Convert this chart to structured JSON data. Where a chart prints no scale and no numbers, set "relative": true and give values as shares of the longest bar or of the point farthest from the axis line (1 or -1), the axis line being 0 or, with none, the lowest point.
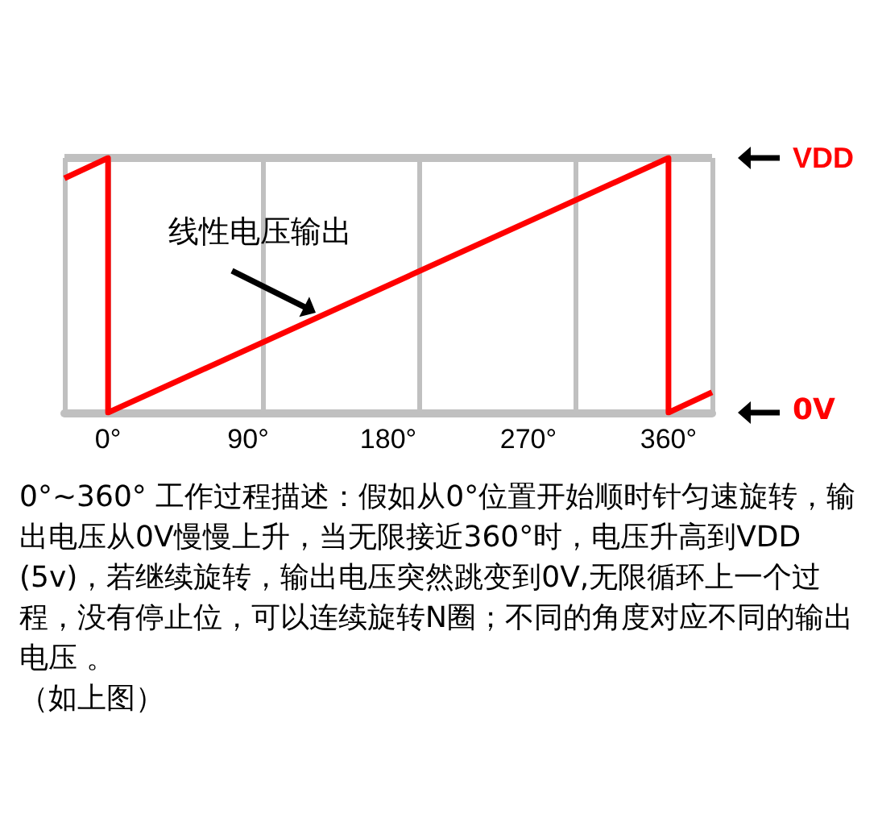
{
  "chart_data": {
    "type": "line",
    "x": [
      -28,
      0,
      0,
      360,
      360,
      388
    ],
    "series": [
      {
        "color": "#ff0000",
        "values": [
          0.92,
          1,
          0,
          1,
          0,
          0.08
        ]
      }
    ],
    "relative": true,
    "xlim": [
      -28,
      388
    ],
    "xticks": [
      {
        "value": 0,
        "label": "0°"
      },
      {
        "value": 90,
        "label": "90°"
      },
      {
        "value": 180,
        "label": "180°"
      },
      {
        "value": 270,
        "label": "270°"
      },
      {
        "value": 360,
        "label": "360°"
      }
    ],
    "ref_lines": [
      {
        "axis": "y",
        "value": 1,
        "label": "VDD",
        "color": "#c0c0c0"
      }
    ],
    "grid": "x",
    "annotations": [
      {
        "text": "线性电压输出",
        "x": 137,
        "y": 0.38
      },
      "0V",
      "0°~360° 工作过程描述：假如从0°位置开始顺时针匀速旋转，输出电压从0V慢慢上升，当无限接近360°时，电压升高到VDD (5v)，若继续旋转，输出电压突然跳变到0V,无限循环上一个过程，没有停止位，可以连续旋转N圈；不同的角度对应不同的输出电压 。",
      "（如上图）"
    ]
  }
}
